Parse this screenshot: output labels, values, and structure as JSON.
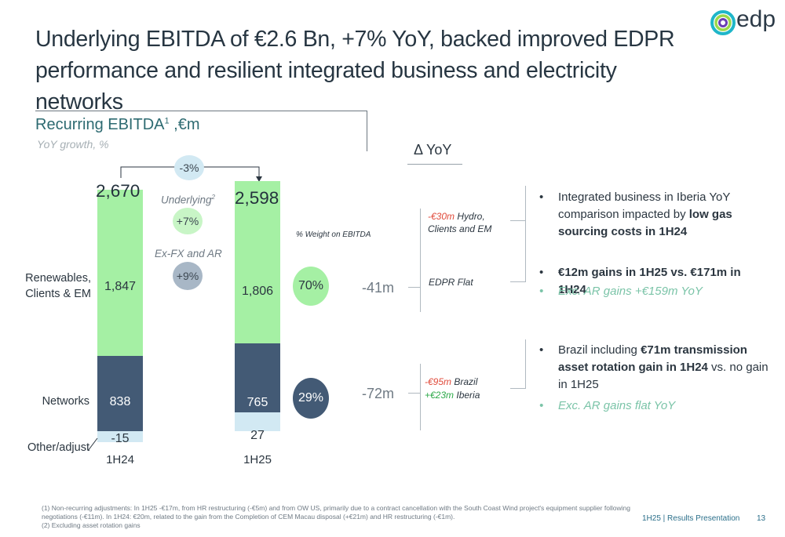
{
  "title": "Underlying EBITDA of €2.6 Bn, +7% YoY, backed improved EDPR performance and resilient integrated business and electricity networks",
  "logo": {
    "text": "edp",
    "icon": "edp-swirl-logo"
  },
  "section": {
    "title": "Recurring EBITDA",
    "title_sup": "1",
    "title_suffix": " ,€m",
    "subtitle": "YoY growth, %"
  },
  "colors": {
    "renewables": "#a5f0a4",
    "networks": "#435a75",
    "other": "#d2e9f3",
    "accent_teal": "#2d6a71",
    "negative": "#e04a3a",
    "positive": "#2eaa4a"
  },
  "chart_data": {
    "type": "bar",
    "categories": [
      "1H24",
      "1H25"
    ],
    "totals": [
      "2,670",
      "2,598"
    ],
    "series": [
      {
        "name": "Renewables, Clients & EM",
        "values": [
          1847,
          1806
        ]
      },
      {
        "name": "Networks",
        "values": [
          838,
          765
        ]
      },
      {
        "name": "Other/adjust",
        "values": [
          -15,
          27
        ]
      }
    ],
    "value_labels": {
      "renewables": [
        "1,847",
        "1,806"
      ],
      "networks": [
        "838",
        "765"
      ],
      "other": [
        "-15",
        "27"
      ]
    },
    "row_labels": {
      "renewables": "Renewables, Clients & EM",
      "networks": "Networks",
      "other": "Other/adjust"
    },
    "weights": {
      "label": "% Weight on EBITDA",
      "renewables": "70%",
      "networks": "29%"
    },
    "growth": {
      "reported": "-3%",
      "underlying_label": "Underlying",
      "underlying_sup": "2",
      "underlying": "+7%",
      "exfx_label": "Ex-FX and AR",
      "exfx": "+9%"
    }
  },
  "delta": {
    "header": "Δ YoY",
    "renewables_total": "-41m",
    "networks_total": "-72m",
    "hydro_amount": "-€30m",
    "hydro_text": " Hydro, Clients and EM",
    "edpr_text": "EDPR Flat",
    "brazil_amount": "-€95m",
    "brazil_text": " Brazil",
    "iberia_amount": "+€23m",
    "iberia_text": " Iberia"
  },
  "bullets": {
    "b1_pre": "Integrated business in Iberia YoY comparison impacted by ",
    "b1_bold": "low gas sourcing costs in 1H24",
    "b2_bold": "€12m gains in 1H25 vs. €171m in 1H24",
    "b2_sub": "Exc. AR gains +€159m YoY",
    "b3_pre": "Brazil including ",
    "b3_bold": "€71m transmission asset rotation gain in 1H24",
    "b3_post": " vs. no gain in 1H25",
    "b3_sub": "Exc. AR gains flat YoY"
  },
  "footnotes": {
    "f1": "(1) Non-recurring adjustments: In 1H25 -€17m, from HR restructuring (-€5m) and from OW US, primarily due to a contract cancellation with the South Coast Wind project's equipment supplier following negotiations (-€11m). In 1H24: €20m, related to the gain from the Completion of CEM Macau disposal (+€21m) and HR restructuring (-€1m).",
    "f2": "(2) Excluding asset rotation gains"
  },
  "footer": {
    "presentation": "1H25 | Results Presentation",
    "page": "13"
  }
}
